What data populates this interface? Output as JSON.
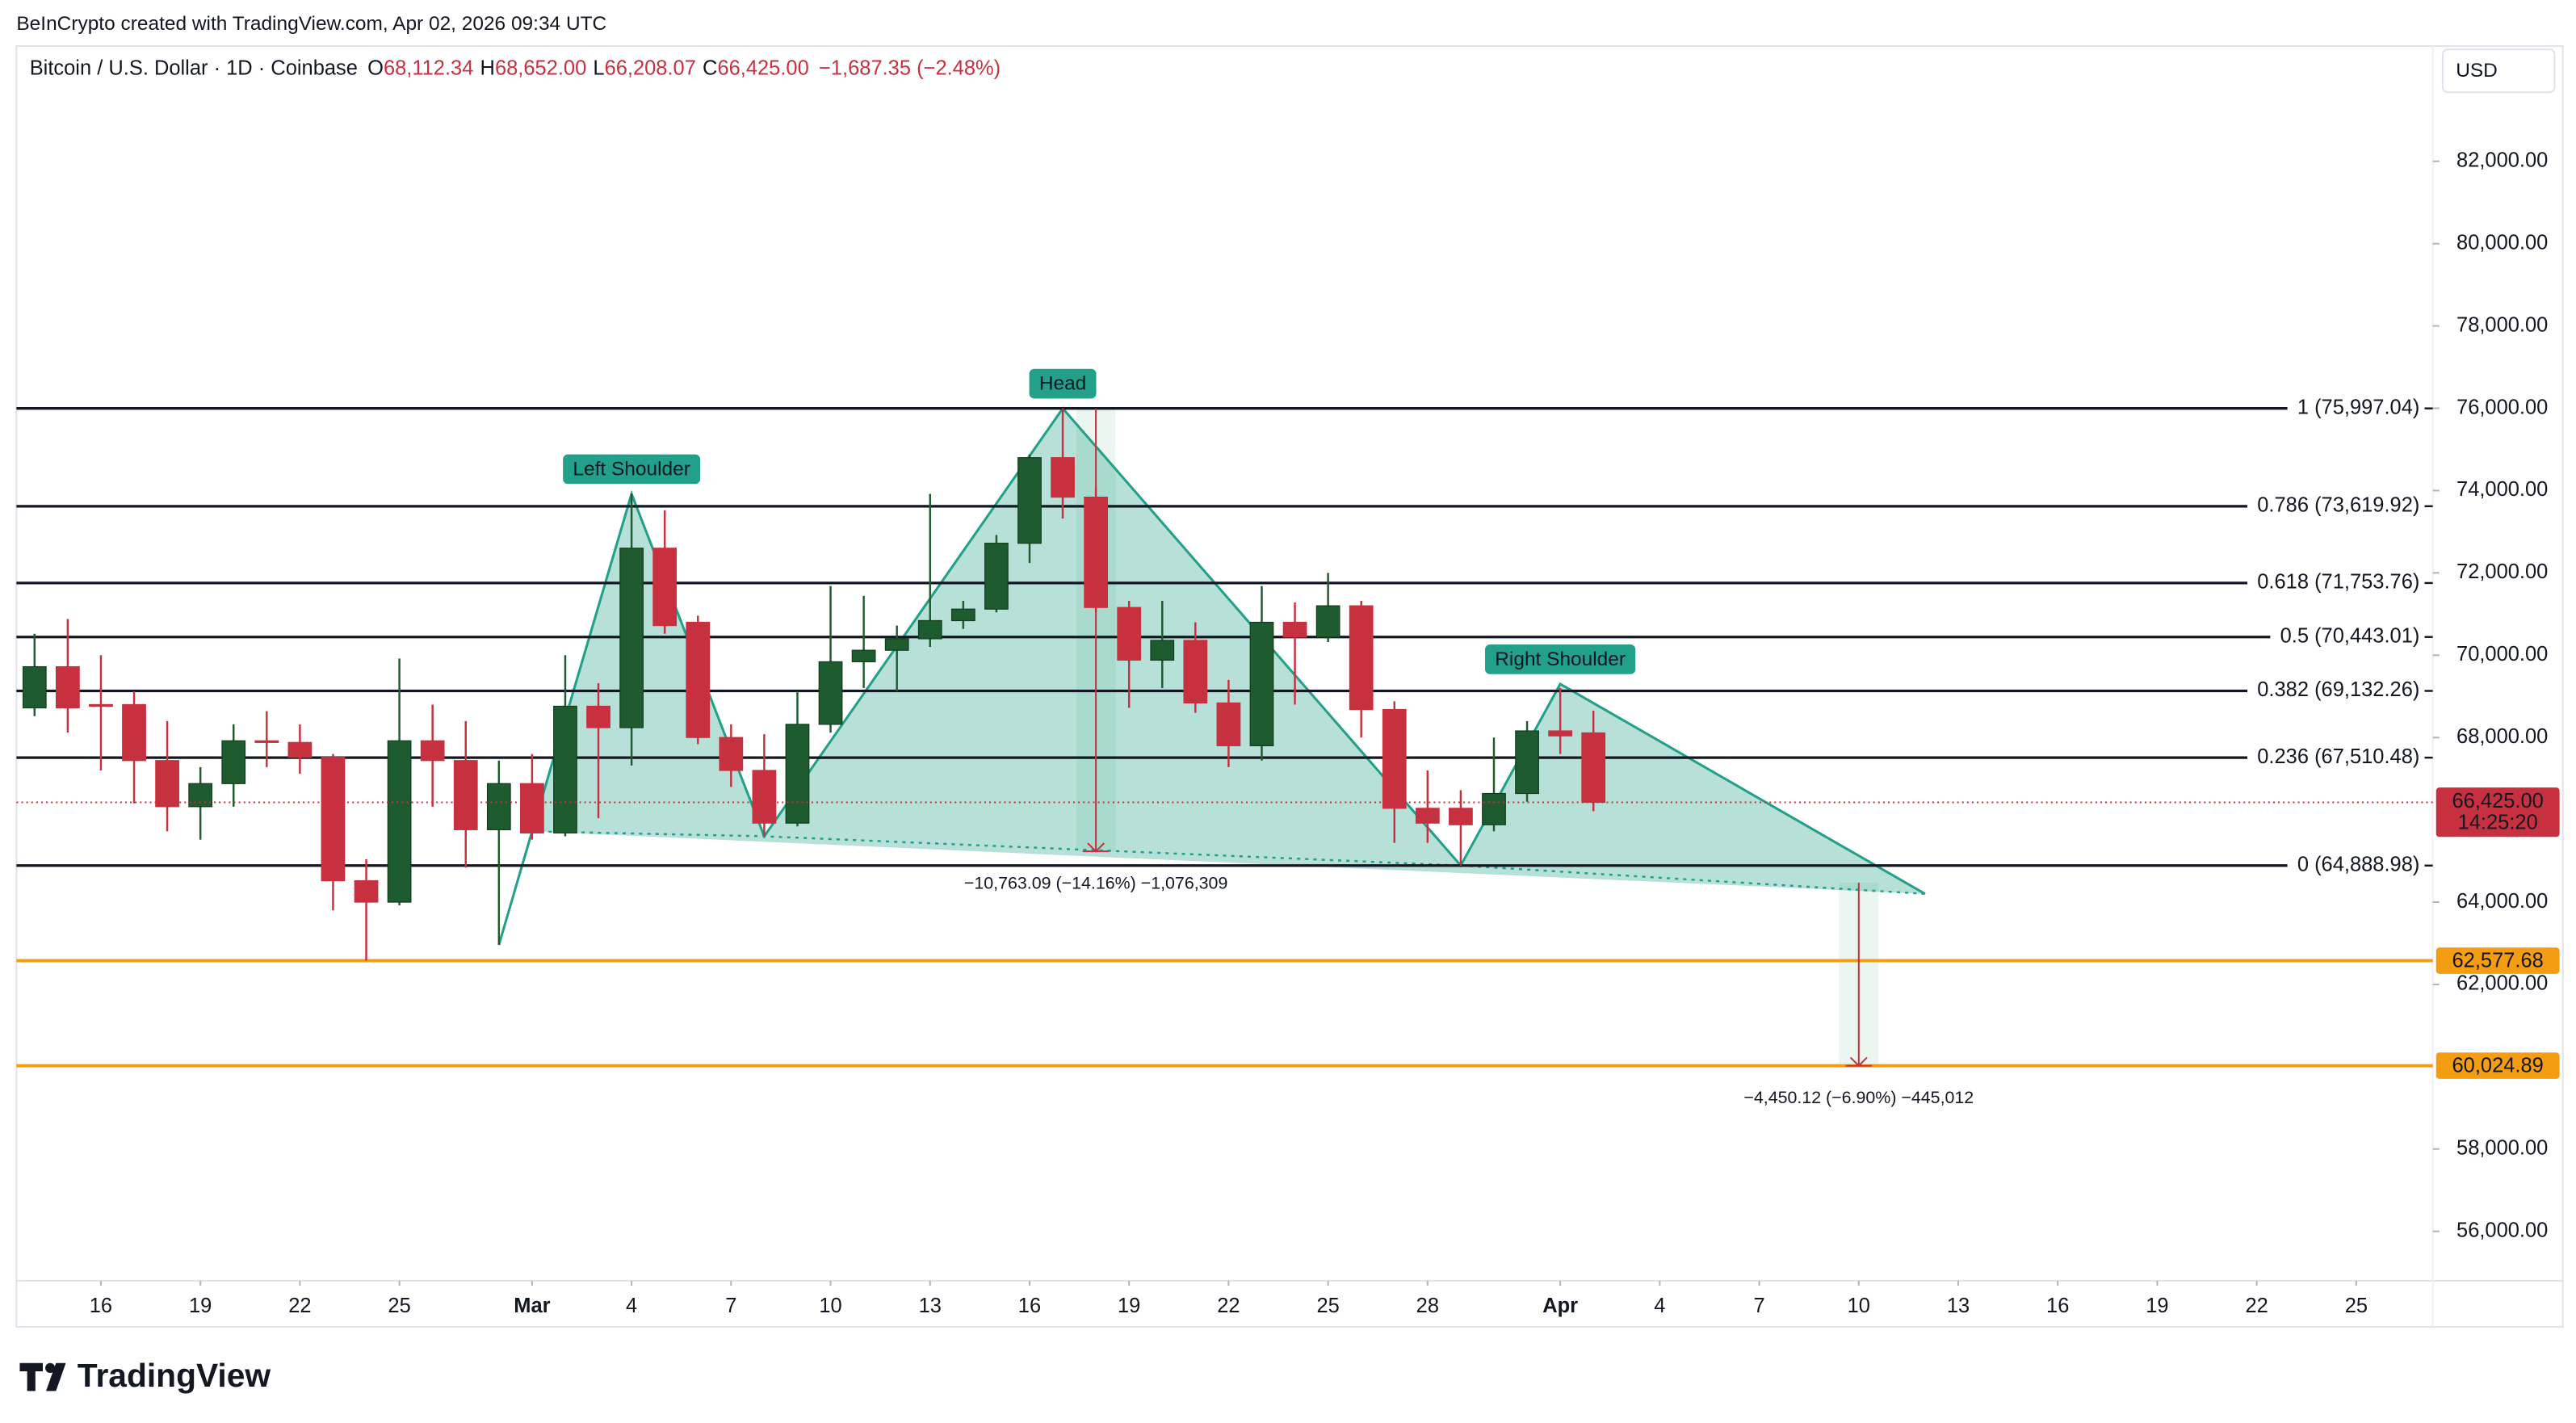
{
  "header": {
    "attribution": "BeInCrypto created with TradingView.com, Apr 02, 2026 09:34 UTC",
    "brand": "TradingView"
  },
  "chart_data": {
    "type": "candlestick",
    "title": "Bitcoin / U.S. Dollar · 1D · Coinbase",
    "legend_values": [
      {
        "label": "O",
        "text": "68,112.34"
      },
      {
        "label": "H",
        "text": "68,652.00"
      },
      {
        "label": "L",
        "text": "66,208.07"
      },
      {
        "label": "C",
        "text": "66,425.00"
      }
    ],
    "change": "−1,687.35 (−2.48%)",
    "currency": "USD",
    "up_color": "#1e5b2f",
    "down_color": "#c7303f",
    "x": [
      "02-14",
      "02-15",
      "02-16",
      "02-17",
      "02-18",
      "02-19",
      "02-20",
      "02-21",
      "02-22",
      "02-23",
      "02-24",
      "02-25",
      "02-26",
      "02-27",
      "02-28",
      "03-01",
      "03-02",
      "03-03",
      "03-04",
      "03-05",
      "03-06",
      "03-07",
      "03-08",
      "03-09",
      "03-10",
      "03-11",
      "03-12",
      "03-13",
      "03-14",
      "03-15",
      "03-16",
      "03-17",
      "03-18",
      "03-19",
      "03-20",
      "03-21",
      "03-22",
      "03-23",
      "03-24",
      "03-25",
      "03-26",
      "03-27",
      "03-28",
      "03-29",
      "03-30",
      "03-31",
      "04-01",
      "04-02"
    ],
    "open": [
      68720,
      69720,
      68800,
      68800,
      67440,
      66320,
      66880,
      67920,
      67880,
      67520,
      64520,
      64000,
      67920,
      67440,
      65760,
      66880,
      65680,
      68760,
      68240,
      72600,
      70800,
      68000,
      67200,
      65920,
      68320,
      69840,
      70120,
      70400,
      70840,
      71120,
      72720,
      74800,
      73840,
      71160,
      69880,
      70360,
      68840,
      67800,
      70800,
      70440,
      71200,
      68680,
      66280,
      66280,
      65880,
      66640,
      68160,
      68112.34
    ],
    "high": [
      70520,
      70880,
      70000,
      69120,
      68400,
      67280,
      68320,
      68640,
      68320,
      67600,
      65040,
      69920,
      68800,
      68400,
      67440,
      67600,
      70000,
      69320,
      73920,
      73520,
      70960,
      68320,
      68080,
      69120,
      71680,
      71440,
      70720,
      73920,
      71320,
      72920,
      74880,
      75997.04,
      74080,
      71320,
      71320,
      70800,
      69400,
      71680,
      71280,
      72000,
      71320,
      68880,
      67200,
      66720,
      68000,
      68400,
      69200,
      68652
    ],
    "low": [
      68520,
      68120,
      67200,
      66400,
      65720,
      65520,
      66320,
      67280,
      67120,
      63800,
      62577.68,
      63920,
      66320,
      64840,
      62960,
      65520,
      65600,
      66040,
      67320,
      70520,
      67840,
      66800,
      65600,
      65840,
      68120,
      69200,
      69120,
      70200,
      70640,
      71040,
      72240,
      73320,
      71040,
      68720,
      69200,
      68600,
      67280,
      67440,
      68800,
      70320,
      68000,
      65440,
      65440,
      64888.98,
      65720,
      66440,
      67600,
      66208.07
    ],
    "close": [
      69720,
      68720,
      68760,
      67440,
      66320,
      66880,
      67920,
      67880,
      67520,
      64520,
      64000,
      67920,
      67440,
      65760,
      66880,
      65680,
      68760,
      68240,
      72600,
      70720,
      68000,
      67200,
      65920,
      68320,
      69840,
      70120,
      70400,
      70840,
      71120,
      72720,
      74800,
      73840,
      71160,
      69880,
      70360,
      68840,
      67800,
      70800,
      70440,
      71200,
      68680,
      66280,
      65920,
      65880,
      66640,
      68160,
      68040,
      66425
    ],
    "ylim": [
      54800,
      84800
    ],
    "yticks": [
      {
        "value": 56000,
        "label": "56,000.00"
      },
      {
        "value": 58000,
        "label": "58,000.00"
      },
      {
        "value": 62000,
        "label": "62,000.00"
      },
      {
        "value": 64000,
        "label": "64,000.00"
      },
      {
        "value": 68000,
        "label": "68,000.00"
      },
      {
        "value": 70000,
        "label": "70,000.00"
      },
      {
        "value": 72000,
        "label": "72,000.00"
      },
      {
        "value": 74000,
        "label": "74,000.00"
      },
      {
        "value": 76000,
        "label": "76,000.00"
      },
      {
        "value": 78000,
        "label": "78,000.00"
      },
      {
        "value": 80000,
        "label": "80,000.00"
      },
      {
        "value": 82000,
        "label": "82,000.00"
      }
    ],
    "xticks": [
      {
        "value": "02-16",
        "label": "16"
      },
      {
        "value": "02-19",
        "label": "19"
      },
      {
        "value": "02-22",
        "label": "22"
      },
      {
        "value": "02-25",
        "label": "25"
      },
      {
        "value": "03-01",
        "label": "Mar"
      },
      {
        "value": "03-04",
        "label": "4"
      },
      {
        "value": "03-07",
        "label": "7"
      },
      {
        "value": "03-10",
        "label": "10"
      },
      {
        "value": "03-13",
        "label": "13"
      },
      {
        "value": "03-16",
        "label": "16"
      },
      {
        "value": "03-19",
        "label": "19"
      },
      {
        "value": "03-22",
        "label": "22"
      },
      {
        "value": "03-25",
        "label": "25"
      },
      {
        "value": "03-28",
        "label": "28"
      },
      {
        "value": "04-01",
        "label": "Apr"
      },
      {
        "value": "04-04",
        "label": "4"
      },
      {
        "value": "04-07",
        "label": "7"
      },
      {
        "value": "04-10",
        "label": "10"
      },
      {
        "value": "04-13",
        "label": "13"
      },
      {
        "value": "04-16",
        "label": "16"
      },
      {
        "value": "04-19",
        "label": "19"
      },
      {
        "value": "04-22",
        "label": "22"
      },
      {
        "value": "04-25",
        "label": "25"
      }
    ],
    "fib_levels": [
      {
        "value": 75997.04,
        "label": "1 (75,997.04)"
      },
      {
        "value": 73619.92,
        "label": "0.786 (73,619.92)"
      },
      {
        "value": 71753.76,
        "label": "0.618 (71,753.76)"
      },
      {
        "value": 70443.01,
        "label": "0.5 (70,443.01)"
      },
      {
        "value": 69132.26,
        "label": "0.382 (69,132.26)"
      },
      {
        "value": 67510.48,
        "label": "0.236 (67,510.48)"
      },
      {
        "value": 64888.98,
        "label": "0 (64,888.98)"
      }
    ],
    "levels": [
      {
        "value": 62577.68,
        "label": "62,577.68"
      },
      {
        "value": 60024.89,
        "label": "60,024.89"
      }
    ],
    "level_color": "#f59d12",
    "last_price": {
      "value": 66425,
      "label": "66,425.00"
    },
    "countdown": "14:25:20",
    "pattern_color": "#22a089",
    "pattern": [
      {
        "x": "02-28",
        "y": 62960
      },
      {
        "x": "03-01",
        "y": 65720
      },
      {
        "x": "03-04",
        "y": 73920,
        "label": "Left Shoulder"
      },
      {
        "x": "03-08",
        "y": 65600
      },
      {
        "x": "03-17",
        "y": 75997.04,
        "label": "Head"
      },
      {
        "x": "03-29",
        "y": 64888.98
      },
      {
        "x": "04-01",
        "y": 69300,
        "label": "Right Shoulder"
      },
      {
        "x": "04-12",
        "y": 64200
      }
    ],
    "measures": [
      {
        "x": "03-18",
        "from": 75997.04,
        "to": 65233.95,
        "label": "−10,763.09 (−14.16%) −1,076,309"
      },
      {
        "x": "04-10",
        "from": 64475.01,
        "to": 60024.89,
        "label": "−4,450.12 (−6.90%) −445,012"
      }
    ]
  }
}
